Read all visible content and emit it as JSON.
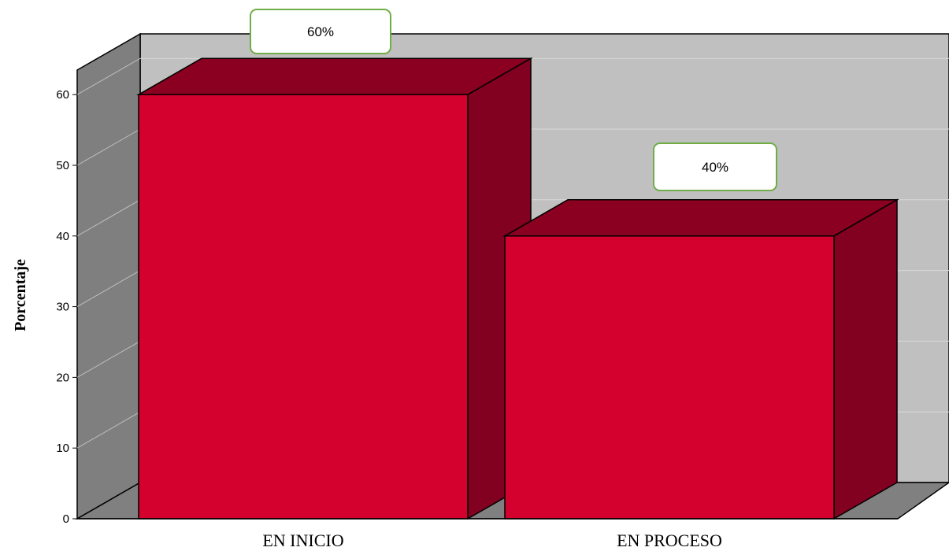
{
  "chart_data": {
    "type": "bar",
    "style": "3d",
    "categories": [
      "EN INICIO",
      "EN PROCESO"
    ],
    "values": [
      60,
      40
    ],
    "data_labels": [
      "60%",
      "40%"
    ],
    "ylabel": "Porcentaje",
    "xlabel": "",
    "ylim": [
      0,
      60
    ],
    "yticks": [
      0,
      10,
      20,
      30,
      40,
      50,
      60
    ],
    "grid": true,
    "legend": "none",
    "colors": {
      "bar_front": "#d4002e",
      "bar_top": "#8b0020",
      "bar_side": "#820020",
      "back_wall": "#c0c0c0",
      "side_wall": "#7f7f7f",
      "floor": "#808080",
      "label_border": "#70ad47"
    }
  }
}
